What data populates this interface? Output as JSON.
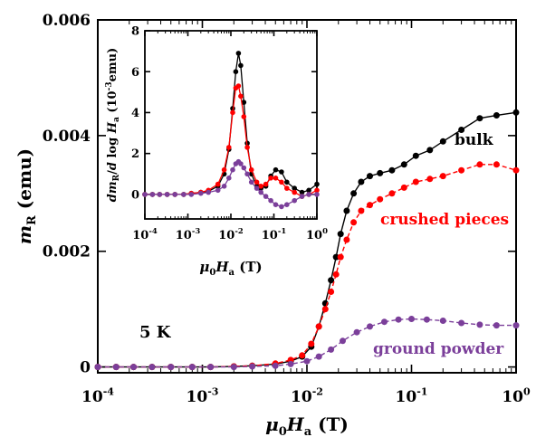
{
  "chart_data": [
    {
      "type": "line",
      "panel": "main",
      "x_scale": "log",
      "xlim": [
        0.0001,
        1
      ],
      "ylim": [
        -0.0001,
        0.006
      ],
      "x_ticks": [
        0.0001,
        0.001,
        0.01,
        0.1,
        1
      ],
      "x_tick_labels": [
        {
          "base": "10",
          "exp": "-4"
        },
        {
          "base": "10",
          "exp": "-3"
        },
        {
          "base": "10",
          "exp": "-2"
        },
        {
          "base": "10",
          "exp": "-1"
        },
        {
          "base": "10",
          "exp": "0"
        }
      ],
      "y_ticks": [
        0,
        0.002,
        0.004,
        0.006
      ],
      "y_tick_labels": [
        "0",
        "0.002",
        "0.004",
        "0.006"
      ],
      "xlabel": {
        "mu": "μ",
        "sub0": "0",
        "H": "H",
        "suba": "a",
        "unit": " (T)"
      },
      "ylabel": {
        "m": "m",
        "sub": "R",
        "unit": " (emu)"
      },
      "annotation": "5 K",
      "series": [
        {
          "name": "bulk",
          "color": "#000000",
          "line_style": "solid",
          "x": [
            0.0001,
            0.00015,
            0.00022,
            0.00033,
            0.0005,
            0.0008,
            0.0012,
            0.002,
            0.003,
            0.005,
            0.007,
            0.009,
            0.011,
            0.013,
            0.015,
            0.017,
            0.019,
            0.021,
            0.024,
            0.028,
            0.033,
            0.04,
            0.05,
            0.065,
            0.085,
            0.11,
            0.15,
            0.2,
            0.3,
            0.45,
            0.65,
            1.0
          ],
          "values": [
            0.0,
            0.0,
            0.0,
            0.0,
            0.0,
            0.0,
            0.0,
            1e-05,
            2e-05,
            5e-05,
            0.0001,
            0.00018,
            0.00035,
            0.0007,
            0.0011,
            0.0015,
            0.0019,
            0.0023,
            0.0027,
            0.003,
            0.0032,
            0.0033,
            0.00335,
            0.0034,
            0.0035,
            0.00365,
            0.00375,
            0.0039,
            0.0041,
            0.0043,
            0.00435,
            0.0044
          ]
        },
        {
          "name": "crushed pieces",
          "color": "#ff0000",
          "line_style": "dashed",
          "x": [
            0.0001,
            0.00015,
            0.00022,
            0.00033,
            0.0005,
            0.0008,
            0.0012,
            0.002,
            0.003,
            0.005,
            0.007,
            0.009,
            0.011,
            0.013,
            0.015,
            0.017,
            0.019,
            0.021,
            0.024,
            0.028,
            0.033,
            0.04,
            0.05,
            0.065,
            0.085,
            0.11,
            0.15,
            0.2,
            0.3,
            0.45,
            0.65,
            1.0
          ],
          "values": [
            0.0,
            0.0,
            0.0,
            0.0,
            0.0,
            0.0,
            0.0,
            1e-05,
            2e-05,
            6e-05,
            0.00012,
            0.0002,
            0.0004,
            0.0007,
            0.001,
            0.0013,
            0.0016,
            0.0019,
            0.0022,
            0.0025,
            0.0027,
            0.0028,
            0.0029,
            0.003,
            0.0031,
            0.0032,
            0.00325,
            0.0033,
            0.0034,
            0.0035,
            0.0035,
            0.0034
          ]
        },
        {
          "name": "ground powder",
          "color": "#7b3f9a",
          "line_style": "dashed",
          "x": [
            0.0001,
            0.00015,
            0.00022,
            0.00033,
            0.0005,
            0.0008,
            0.0012,
            0.002,
            0.003,
            0.005,
            0.007,
            0.01,
            0.013,
            0.017,
            0.022,
            0.03,
            0.04,
            0.055,
            0.075,
            0.1,
            0.14,
            0.2,
            0.3,
            0.45,
            0.65,
            1.0
          ],
          "values": [
            0.0,
            0.0,
            0.0,
            0.0,
            0.0,
            0.0,
            0.0,
            0.0,
            1e-05,
            2e-05,
            5e-05,
            0.0001,
            0.00018,
            0.0003,
            0.00045,
            0.0006,
            0.0007,
            0.00078,
            0.00082,
            0.00083,
            0.00082,
            0.0008,
            0.00076,
            0.00073,
            0.00072,
            0.00072
          ]
        }
      ],
      "legend": "labels placed next to curves",
      "grid": false
    },
    {
      "type": "line",
      "panel": "inset",
      "x_scale": "log",
      "xlim": [
        0.0001,
        1
      ],
      "ylim": [
        -1.2,
        8
      ],
      "x_ticks": [
        0.0001,
        0.001,
        0.01,
        0.1,
        1
      ],
      "x_tick_labels": [
        {
          "base": "10",
          "exp": "-4"
        },
        {
          "base": "10",
          "exp": "-3"
        },
        {
          "base": "10",
          "exp": "-2"
        },
        {
          "base": "10",
          "exp": "-1"
        },
        {
          "base": "10",
          "exp": "0"
        }
      ],
      "y_ticks": [
        0,
        2,
        4,
        6,
        8
      ],
      "y_tick_labels": [
        "0",
        "2",
        "4",
        "6",
        "8"
      ],
      "xlabel": {
        "mu": "μ",
        "sub0": "0",
        "H": "H",
        "suba": "a",
        "unit": " (T)"
      },
      "ylabel": {
        "d1": "dm",
        "sub": "R",
        "slash": "/",
        "d2": "d",
        "log": " log ",
        "H": "H",
        "suba": "a",
        "u1": " (10",
        "exp": "-3",
        "u2": "emu)"
      },
      "series": [
        {
          "name": "bulk",
          "color": "#000000",
          "x": [
            0.0001,
            0.00015,
            0.00022,
            0.00033,
            0.0005,
            0.0008,
            0.0012,
            0.002,
            0.003,
            0.005,
            0.007,
            0.009,
            0.011,
            0.013,
            0.015,
            0.017,
            0.02,
            0.024,
            0.03,
            0.04,
            0.05,
            0.065,
            0.085,
            0.11,
            0.15,
            0.2,
            0.3,
            0.45,
            0.65,
            1.0
          ],
          "values": [
            0.0,
            0.0,
            0.0,
            0.0,
            0.0,
            0.0,
            0.05,
            0.1,
            0.15,
            0.4,
            1.0,
            2.2,
            4.2,
            6.0,
            6.9,
            6.3,
            4.5,
            2.5,
            1.0,
            0.4,
            0.3,
            0.4,
            0.9,
            1.2,
            1.1,
            0.6,
            0.3,
            0.1,
            0.2,
            0.5
          ]
        },
        {
          "name": "crushed pieces",
          "color": "#ff0000",
          "x": [
            0.0001,
            0.00015,
            0.00022,
            0.00033,
            0.0005,
            0.0008,
            0.0012,
            0.002,
            0.003,
            0.005,
            0.007,
            0.009,
            0.011,
            0.013,
            0.015,
            0.017,
            0.02,
            0.024,
            0.03,
            0.04,
            0.05,
            0.065,
            0.085,
            0.11,
            0.15,
            0.2,
            0.3,
            0.45,
            0.65,
            1.0
          ],
          "values": [
            0.0,
            0.0,
            0.0,
            0.0,
            0.0,
            0.0,
            0.05,
            0.1,
            0.2,
            0.5,
            1.2,
            2.3,
            4.0,
            5.2,
            5.3,
            4.8,
            3.8,
            2.3,
            1.2,
            0.6,
            0.4,
            0.5,
            0.8,
            0.8,
            0.6,
            0.3,
            0.1,
            -0.1,
            0.0,
            0.2
          ]
        },
        {
          "name": "ground powder",
          "color": "#7b3f9a",
          "x": [
            0.0001,
            0.00015,
            0.00022,
            0.00033,
            0.0005,
            0.0008,
            0.0012,
            0.002,
            0.003,
            0.005,
            0.007,
            0.009,
            0.011,
            0.013,
            0.015,
            0.017,
            0.02,
            0.024,
            0.03,
            0.04,
            0.05,
            0.065,
            0.085,
            0.11,
            0.15,
            0.2,
            0.3,
            0.45,
            0.65,
            1.0
          ],
          "values": [
            0.0,
            0.0,
            0.0,
            0.0,
            0.0,
            0.0,
            0.0,
            0.05,
            0.1,
            0.2,
            0.4,
            0.8,
            1.2,
            1.5,
            1.6,
            1.5,
            1.3,
            1.0,
            0.6,
            0.3,
            0.1,
            -0.1,
            -0.3,
            -0.5,
            -0.6,
            -0.5,
            -0.3,
            -0.1,
            0.0,
            0.0
          ]
        }
      ],
      "grid": false
    }
  ]
}
